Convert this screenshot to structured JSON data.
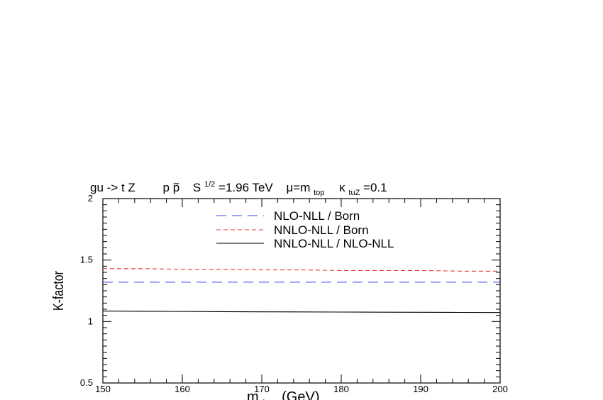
{
  "chart_data": {
    "type": "line",
    "title": "gu -> t Z    pp̄  S¹ᐟ²=1.96 TeV   μ=m_top   κ_tuZ=0.1",
    "title_parts": {
      "process": "gu -> t Z",
      "p": "p",
      "pbar": "p",
      "s": "S",
      "s_sup": "1/2",
      "energy": "=1.96 TeV",
      "mu": "μ=m",
      "mu_sub": "top",
      "kappa": "κ",
      "kappa_sub": "tuZ",
      "kappa_val": "=0.1"
    },
    "xlabel": "m",
    "xlabel_sub": "t",
    "xlabel_unit": "(GeV)",
    "ylabel": "K-factor",
    "xlim": [
      150,
      200
    ],
    "ylim": [
      0.5,
      2
    ],
    "x_ticks": [
      150,
      160,
      170,
      180,
      190,
      200
    ],
    "x_tick_labels": [
      "150",
      "160",
      "170",
      "180",
      "190",
      "200"
    ],
    "y_ticks": [
      0.5,
      1,
      1.5,
      2
    ],
    "y_tick_labels": [
      "0.5",
      "1",
      "1.5",
      "2"
    ],
    "legend_position": "top-right",
    "x": [
      150,
      155,
      160,
      165,
      170,
      175,
      180,
      185,
      190,
      195,
      200
    ],
    "series": [
      {
        "name": "NLO-NLL / Born",
        "color": "#3344ee",
        "dash": "long-dash",
        "values": [
          1.32,
          1.32,
          1.32,
          1.32,
          1.32,
          1.32,
          1.32,
          1.32,
          1.32,
          1.32,
          1.32
        ]
      },
      {
        "name": "NNLO-NLL / Born",
        "color": "#ee3333",
        "dash": "short-dash",
        "values": [
          1.43,
          1.43,
          1.425,
          1.425,
          1.42,
          1.42,
          1.415,
          1.415,
          1.415,
          1.41,
          1.41
        ]
      },
      {
        "name": "NNLO-NLL / NLO-NLL",
        "color": "#000000",
        "dash": "solid",
        "values": [
          1.085,
          1.083,
          1.082,
          1.08,
          1.079,
          1.078,
          1.077,
          1.076,
          1.075,
          1.074,
          1.073
        ]
      }
    ]
  }
}
